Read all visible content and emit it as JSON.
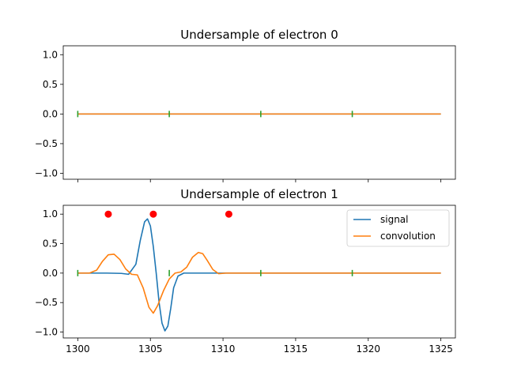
{
  "chart_data": [
    {
      "type": "line",
      "title": "Undersample of electron 0",
      "xlim": [
        1299,
        1326
      ],
      "ylim": [
        -1.1,
        1.15
      ],
      "yticks": [
        1.0,
        0.5,
        0.0,
        -0.5,
        -1.0
      ],
      "ytick_labels": [
        "1.0",
        "0.5",
        "0.0",
        "−0.5",
        "−1.0"
      ],
      "xticks": [
        1300,
        1305,
        1310,
        1315,
        1320,
        1325
      ],
      "show_xtick_labels": false,
      "series": [
        {
          "key": "signal",
          "color": "#1f77b4",
          "x": [
            1300,
            1325
          ],
          "y": [
            0,
            0
          ]
        },
        {
          "key": "convolution",
          "color": "#ff7f0e",
          "x": [
            1300,
            1325
          ],
          "y": [
            0,
            0
          ]
        }
      ],
      "sample_markers": {
        "color": "#2ca02c",
        "x": [
          1300,
          1306.3,
          1312.6,
          1318.9
        ]
      },
      "points": {
        "color": "#ff0000",
        "x": [],
        "y": []
      }
    },
    {
      "type": "line",
      "title": "Undersample of electron 1",
      "xlim": [
        1299,
        1326
      ],
      "ylim": [
        -1.1,
        1.15
      ],
      "yticks": [
        1.0,
        0.5,
        0.0,
        -0.5,
        -1.0
      ],
      "ytick_labels": [
        "1.0",
        "0.5",
        "0.0",
        "−0.5",
        "−1.0"
      ],
      "xticks": [
        1300,
        1305,
        1310,
        1315,
        1320,
        1325
      ],
      "xtick_labels": [
        "1300",
        "1305",
        "1310",
        "1315",
        "1320",
        "1325"
      ],
      "show_xtick_labels": true,
      "legend": {
        "position": "upper right",
        "entries": [
          "signal",
          "convolution"
        ]
      },
      "series": [
        {
          "key": "signal",
          "name": "signal",
          "color": "#1f77b4",
          "x": [
            1300,
            1302,
            1303,
            1303.5,
            1304,
            1304.3,
            1304.6,
            1304.8,
            1305,
            1305.2,
            1305.4,
            1305.6,
            1305.8,
            1306,
            1306.2,
            1306.4,
            1306.6,
            1306.9,
            1307.3,
            1308,
            1325
          ],
          "y": [
            0,
            0,
            -0.005,
            -0.02,
            0.15,
            0.55,
            0.87,
            0.92,
            0.8,
            0.45,
            0.0,
            -0.5,
            -0.85,
            -0.98,
            -0.9,
            -0.6,
            -0.25,
            -0.05,
            0,
            0,
            0
          ]
        },
        {
          "key": "convolution",
          "name": "convolution",
          "color": "#ff7f0e",
          "x": [
            1300,
            1300.8,
            1301.3,
            1301.7,
            1302.1,
            1302.5,
            1302.9,
            1303.3,
            1303.7,
            1304.1,
            1304.5,
            1304.9,
            1305.2,
            1305.5,
            1305.9,
            1306.3,
            1306.7,
            1307.1,
            1307.5,
            1307.9,
            1308.3,
            1308.6,
            1308.9,
            1309.3,
            1309.7,
            1310.2,
            1325
          ],
          "y": [
            0,
            0,
            0.05,
            0.2,
            0.31,
            0.32,
            0.23,
            0.07,
            -0.02,
            -0.03,
            -0.25,
            -0.58,
            -0.68,
            -0.55,
            -0.3,
            -0.1,
            0.0,
            0.02,
            0.1,
            0.27,
            0.35,
            0.33,
            0.22,
            0.06,
            -0.01,
            0,
            0
          ]
        }
      ],
      "sample_markers": {
        "color": "#2ca02c",
        "x": [
          1300,
          1306.3,
          1312.6,
          1318.9
        ]
      },
      "points": {
        "color": "#ff0000",
        "x": [
          1302.1,
          1305.2,
          1310.4
        ],
        "y": [
          1,
          1,
          1
        ]
      }
    }
  ]
}
